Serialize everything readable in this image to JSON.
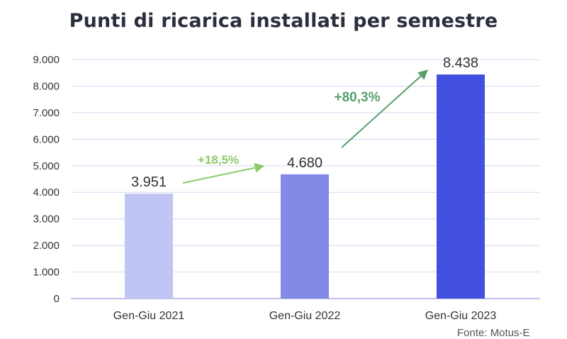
{
  "chart_data": {
    "type": "bar",
    "title": "Punti di ricarica installati per semestre",
    "categories": [
      "Gen-Giu 2021",
      "Gen-Giu 2022",
      "Gen-Giu 2023"
    ],
    "values": [
      3951,
      4680,
      8438
    ],
    "value_labels": [
      "3.951",
      "4.680",
      "8.438"
    ],
    "ylim": [
      0,
      9000
    ],
    "yticks": [
      0,
      1000,
      2000,
      3000,
      4000,
      5000,
      6000,
      7000,
      8000,
      9000
    ],
    "ytick_labels": [
      "0",
      "1.000",
      "2.000",
      "3.000",
      "4.000",
      "5.000",
      "6.000",
      "7.000",
      "8.000",
      "9.000"
    ],
    "grid": true,
    "xlabel": "",
    "ylabel": "",
    "bar_colors": [
      "#c0c5f4",
      "#8289e6",
      "#4350df"
    ],
    "annotations": [
      {
        "text": "+18,5%",
        "color": "#8dc96b"
      },
      {
        "text": "+80,3%",
        "color": "#57a06a"
      }
    ]
  },
  "source": "Fonte: Motus-E"
}
